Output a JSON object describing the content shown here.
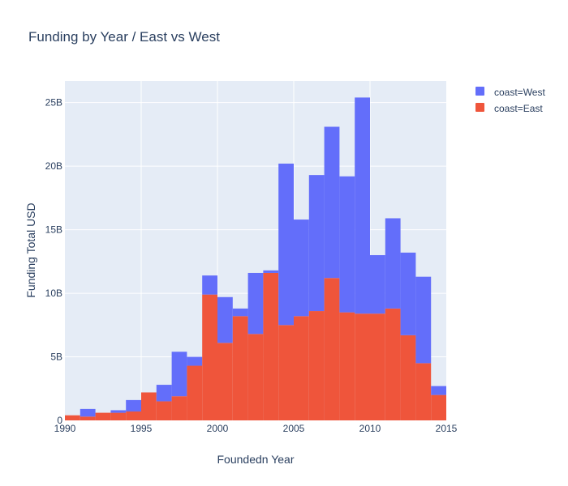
{
  "chart_data": {
    "type": "bar",
    "barmode": "stacked-histogram",
    "title": "Funding by Year / East vs West",
    "xlabel": "Foundedn Year",
    "ylabel": "Funding Total USD",
    "xlim": [
      1990,
      2015
    ],
    "ylim": [
      0,
      26.7
    ],
    "x_ticks": [
      1990,
      1995,
      2000,
      2005,
      2010,
      2015
    ],
    "x_tick_labels": [
      "1990",
      "1995",
      "2000",
      "2005",
      "2010",
      "2015"
    ],
    "y_ticks": [
      0,
      5,
      10,
      15,
      20,
      25
    ],
    "y_tick_labels": [
      "0",
      "5B",
      "10B",
      "15B",
      "20B",
      "25B"
    ],
    "y_unit": "billion USD",
    "bin_starts": [
      1990,
      1991,
      1992,
      1993,
      1994,
      1995,
      1996,
      1997,
      1998,
      1999,
      2000,
      2001,
      2002,
      2003,
      2004,
      2005,
      2006,
      2007,
      2008,
      2009,
      2010,
      2011,
      2012,
      2013,
      2014
    ],
    "bin_width": 1,
    "grid": true,
    "legend_position": "top-right",
    "series": [
      {
        "name": "coast=East",
        "color": "#EF553B",
        "values": [
          0.4,
          0.3,
          0.6,
          0.6,
          0.7,
          2.2,
          1.5,
          1.9,
          4.3,
          9.9,
          6.1,
          8.2,
          6.8,
          11.6,
          7.5,
          8.2,
          8.6,
          11.2,
          8.5,
          8.4,
          8.4,
          8.8,
          6.7,
          4.5,
          2.0
        ]
      },
      {
        "name": "coast=West",
        "color": "#636EFA",
        "values": [
          0.0,
          0.6,
          0.0,
          0.2,
          0.9,
          0.0,
          1.3,
          3.5,
          0.7,
          1.5,
          3.6,
          0.6,
          4.8,
          0.2,
          12.7,
          7.6,
          10.7,
          11.9,
          10.7,
          17.0,
          4.6,
          7.1,
          6.5,
          6.8,
          0.7
        ]
      }
    ],
    "extra_bars": [
      {
        "x_start": 2014.75,
        "x_end": 2015,
        "value": 0.4,
        "series": "coast=East"
      }
    ]
  },
  "legend": {
    "items": [
      {
        "label": "coast=West",
        "color": "#636EFA"
      },
      {
        "label": "coast=East",
        "color": "#EF553B"
      }
    ]
  },
  "colors": {
    "plot_background": "#E5ECF6",
    "grid": "#ffffff",
    "text": "#2a3f5f"
  }
}
